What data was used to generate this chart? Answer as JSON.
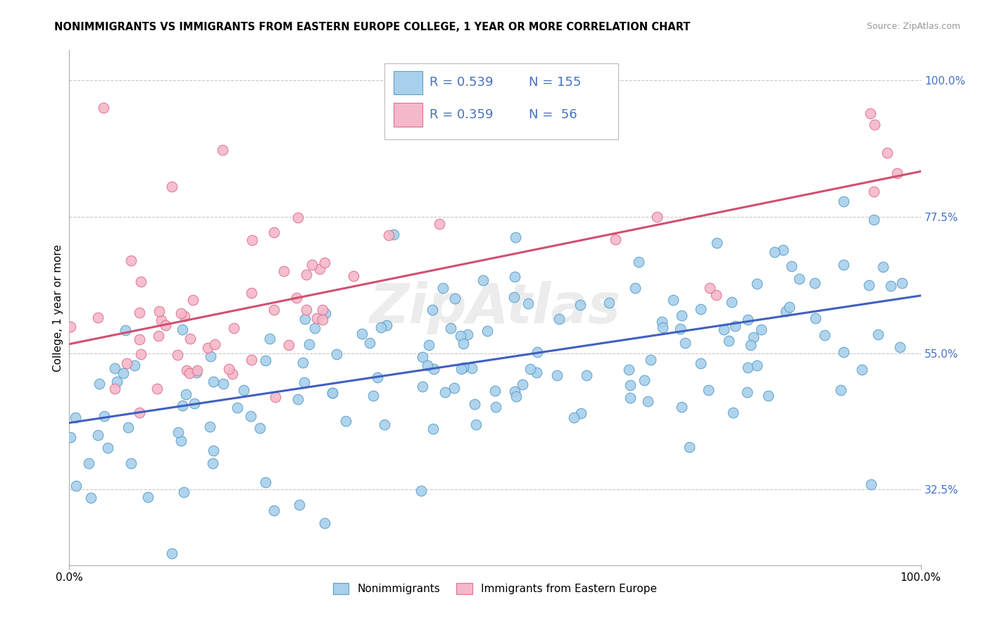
{
  "title": "NONIMMIGRANTS VS IMMIGRANTS FROM EASTERN EUROPE COLLEGE, 1 YEAR OR MORE CORRELATION CHART",
  "source": "Source: ZipAtlas.com",
  "ylabel": "College, 1 year or more",
  "legend_label_1": "Nonimmigrants",
  "legend_label_2": "Immigrants from Eastern Europe",
  "legend_R1": "R = 0.539",
  "legend_N1": "N = 155",
  "legend_R2": "R = 0.359",
  "legend_N2": "N =  56",
  "color_blue_face": "#a8d0ec",
  "color_blue_edge": "#5b9fc8",
  "color_pink_face": "#f4b8c8",
  "color_pink_edge": "#e07090",
  "color_blue_line": "#4060c0",
  "color_pink_line": "#d05070",
  "background_color": "#ffffff",
  "grid_color": "#c8c8c8",
  "blue_line_y_start": 0.435,
  "blue_line_y_end": 0.645,
  "pink_line_y_start": 0.565,
  "pink_line_y_end": 0.85,
  "xlim": [
    0.0,
    1.0
  ],
  "ylim": [
    0.2,
    1.05
  ],
  "yticks_right": [
    0.325,
    0.55,
    0.775,
    1.0
  ],
  "ytick_labels_right": [
    "32.5%",
    "55.0%",
    "77.5%",
    "100.0%"
  ],
  "xtick_positions": [
    0.0,
    1.0
  ],
  "xtick_labels": [
    "0.0%",
    "100.0%"
  ],
  "watermark": "ZipAtlas",
  "N_blue": 155,
  "N_pink": 56,
  "R_blue": 0.539,
  "R_pink": 0.359
}
